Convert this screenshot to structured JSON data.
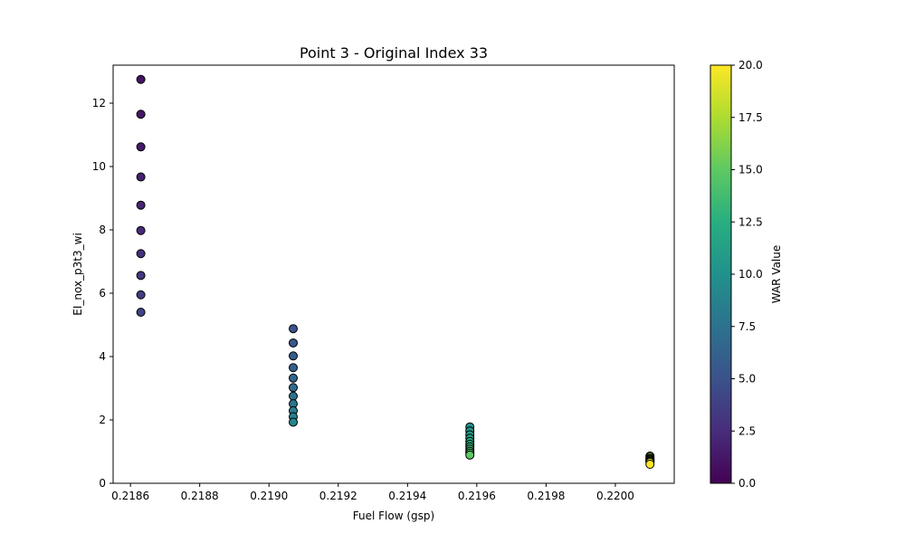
{
  "chart_data": {
    "type": "scatter",
    "title": "Point 3 - Original Index 33",
    "xlabel": "Fuel Flow (gsp)",
    "ylabel": "EI_nox_p3t3_wi",
    "xlim": [
      0.21855,
      0.22017
    ],
    "ylim": [
      0,
      13.2
    ],
    "x_ticks": [
      0.2186,
      0.2188,
      0.219,
      0.2192,
      0.2194,
      0.2196,
      0.2198,
      0.22
    ],
    "x_tick_labels": [
      "0.2186",
      "0.2188",
      "0.2190",
      "0.2192",
      "0.2194",
      "0.2196",
      "0.2198",
      "0.2200"
    ],
    "y_ticks": [
      0,
      2,
      4,
      6,
      8,
      10,
      12
    ],
    "y_tick_labels": [
      "0",
      "2",
      "4",
      "6",
      "8",
      "10",
      "12"
    ],
    "grid": false,
    "colorbar": {
      "label": "WAR Value",
      "range": [
        0,
        20
      ],
      "colormap": "viridis",
      "ticks": [
        0,
        2.5,
        5,
        7.5,
        10,
        12.5,
        15,
        17.5,
        20
      ],
      "tick_labels": [
        "0.0",
        "2.5",
        "5.0",
        "7.5",
        "10.0",
        "12.5",
        "15.0",
        "17.5",
        "20.0"
      ]
    },
    "points": [
      {
        "x": 0.21863,
        "y": 12.75,
        "c": 1.0
      },
      {
        "x": 0.21863,
        "y": 11.65,
        "c": 1.2
      },
      {
        "x": 0.21863,
        "y": 10.62,
        "c": 1.5
      },
      {
        "x": 0.21863,
        "y": 9.67,
        "c": 1.8
      },
      {
        "x": 0.21863,
        "y": 8.78,
        "c": 2.1
      },
      {
        "x": 0.21863,
        "y": 7.98,
        "c": 2.4
      },
      {
        "x": 0.21863,
        "y": 7.25,
        "c": 2.8
      },
      {
        "x": 0.21863,
        "y": 6.56,
        "c": 3.2
      },
      {
        "x": 0.21863,
        "y": 5.95,
        "c": 3.6
      },
      {
        "x": 0.21863,
        "y": 5.4,
        "c": 4.0
      },
      {
        "x": 0.21907,
        "y": 4.88,
        "c": 5.0
      },
      {
        "x": 0.21907,
        "y": 4.43,
        "c": 5.4
      },
      {
        "x": 0.21907,
        "y": 4.02,
        "c": 5.8
      },
      {
        "x": 0.21907,
        "y": 3.65,
        "c": 6.2
      },
      {
        "x": 0.21907,
        "y": 3.32,
        "c": 6.6
      },
      {
        "x": 0.21907,
        "y": 3.02,
        "c": 7.0
      },
      {
        "x": 0.21907,
        "y": 2.75,
        "c": 7.4
      },
      {
        "x": 0.21907,
        "y": 2.51,
        "c": 7.8
      },
      {
        "x": 0.21907,
        "y": 2.29,
        "c": 8.2
      },
      {
        "x": 0.21907,
        "y": 2.1,
        "c": 8.6
      },
      {
        "x": 0.21907,
        "y": 1.93,
        "c": 9.0
      },
      {
        "x": 0.21958,
        "y": 1.78,
        "c": 10.0
      },
      {
        "x": 0.21958,
        "y": 1.65,
        "c": 10.5
      },
      {
        "x": 0.21958,
        "y": 1.53,
        "c": 11.0
      },
      {
        "x": 0.21958,
        "y": 1.42,
        "c": 11.5
      },
      {
        "x": 0.21958,
        "y": 1.32,
        "c": 12.0
      },
      {
        "x": 0.21958,
        "y": 1.23,
        "c": 12.5
      },
      {
        "x": 0.21958,
        "y": 1.15,
        "c": 13.0
      },
      {
        "x": 0.21958,
        "y": 1.08,
        "c": 13.5
      },
      {
        "x": 0.21958,
        "y": 1.01,
        "c": 14.0
      },
      {
        "x": 0.21958,
        "y": 0.95,
        "c": 14.5
      },
      {
        "x": 0.21958,
        "y": 0.89,
        "c": 15.0
      },
      {
        "x": 0.2201,
        "y": 0.86,
        "c": 16.0
      },
      {
        "x": 0.2201,
        "y": 0.82,
        "c": 16.5
      },
      {
        "x": 0.2201,
        "y": 0.78,
        "c": 17.0
      },
      {
        "x": 0.2201,
        "y": 0.75,
        "c": 17.5
      },
      {
        "x": 0.2201,
        "y": 0.72,
        "c": 18.0
      },
      {
        "x": 0.2201,
        "y": 0.69,
        "c": 18.5
      },
      {
        "x": 0.2201,
        "y": 0.66,
        "c": 19.0
      },
      {
        "x": 0.2201,
        "y": 0.6,
        "c": 20.0
      }
    ]
  }
}
